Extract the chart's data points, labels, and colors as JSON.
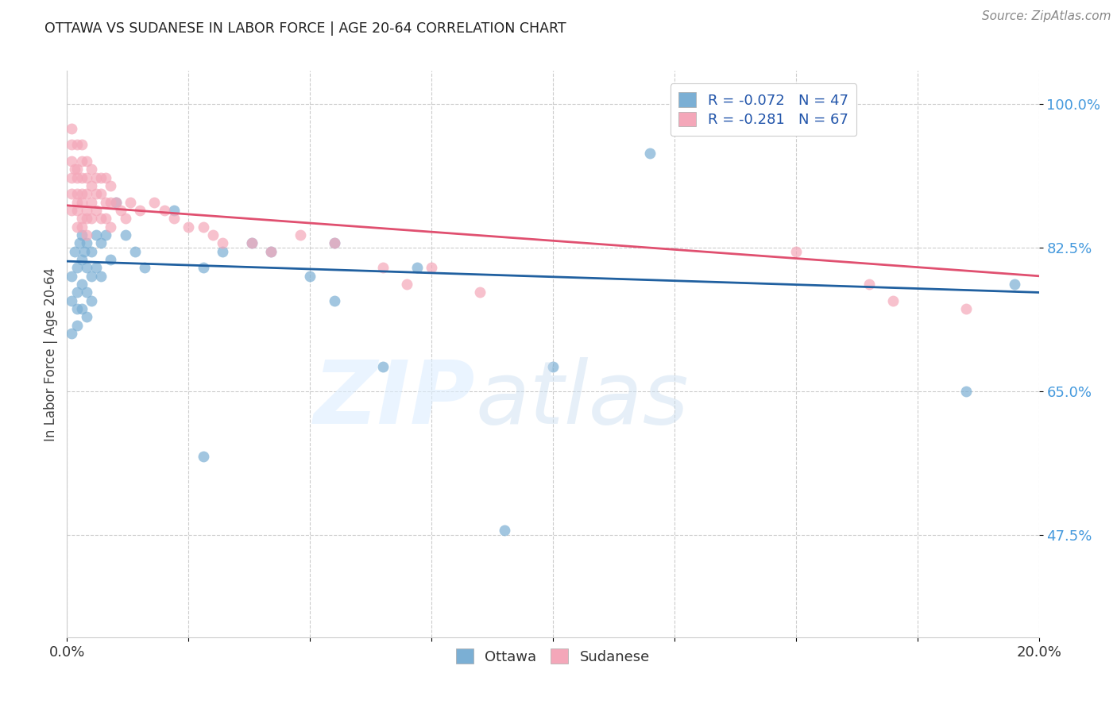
{
  "title": "OTTAWA VS SUDANESE IN LABOR FORCE | AGE 20-64 CORRELATION CHART",
  "source": "Source: ZipAtlas.com",
  "ylabel": "In Labor Force | Age 20-64",
  "xlim": [
    0.0,
    0.2
  ],
  "ylim": [
    0.35,
    1.04
  ],
  "yticks": [
    0.475,
    0.65,
    0.825,
    1.0
  ],
  "ytick_labels": [
    "47.5%",
    "65.0%",
    "82.5%",
    "100.0%"
  ],
  "xticks": [
    0.0,
    0.025,
    0.05,
    0.075,
    0.1,
    0.125,
    0.15,
    0.175,
    0.2
  ],
  "xtick_labels": [
    "0.0%",
    "",
    "",
    "",
    "",
    "",
    "",
    "",
    "20.0%"
  ],
  "ottawa_color": "#7bafd4",
  "sudanese_color": "#f4a7b9",
  "ottawa_line_color": "#2060a0",
  "sudanese_line_color": "#e05070",
  "ottawa_R": -0.072,
  "ottawa_N": 47,
  "sudanese_R": -0.281,
  "sudanese_N": 67,
  "ottawa_line_x": [
    0.0,
    0.2
  ],
  "ottawa_line_y": [
    0.808,
    0.77
  ],
  "sudanese_line_x": [
    0.0,
    0.2
  ],
  "sudanese_line_y": [
    0.876,
    0.79
  ],
  "ottawa_x": [
    0.001,
    0.001,
    0.001,
    0.0015,
    0.002,
    0.002,
    0.002,
    0.002,
    0.0025,
    0.003,
    0.003,
    0.003,
    0.003,
    0.0035,
    0.004,
    0.004,
    0.004,
    0.004,
    0.005,
    0.005,
    0.005,
    0.006,
    0.006,
    0.007,
    0.007,
    0.008,
    0.009,
    0.01,
    0.012,
    0.014,
    0.016,
    0.022,
    0.028,
    0.032,
    0.038,
    0.042,
    0.055,
    0.065,
    0.072,
    0.09,
    0.1,
    0.12,
    0.185,
    0.195,
    0.055,
    0.028,
    0.05
  ],
  "ottawa_y": [
    0.79,
    0.76,
    0.72,
    0.82,
    0.8,
    0.77,
    0.75,
    0.73,
    0.83,
    0.84,
    0.81,
    0.78,
    0.75,
    0.82,
    0.83,
    0.8,
    0.77,
    0.74,
    0.82,
    0.79,
    0.76,
    0.84,
    0.8,
    0.83,
    0.79,
    0.84,
    0.81,
    0.88,
    0.84,
    0.82,
    0.8,
    0.87,
    0.8,
    0.82,
    0.83,
    0.82,
    0.83,
    0.68,
    0.8,
    0.48,
    0.68,
    0.94,
    0.65,
    0.78,
    0.76,
    0.57,
    0.79
  ],
  "sudanese_x": [
    0.001,
    0.001,
    0.001,
    0.001,
    0.001,
    0.001,
    0.0015,
    0.002,
    0.002,
    0.002,
    0.002,
    0.002,
    0.002,
    0.002,
    0.003,
    0.003,
    0.003,
    0.003,
    0.003,
    0.003,
    0.003,
    0.004,
    0.004,
    0.004,
    0.004,
    0.004,
    0.004,
    0.005,
    0.005,
    0.005,
    0.005,
    0.006,
    0.006,
    0.006,
    0.007,
    0.007,
    0.007,
    0.008,
    0.008,
    0.008,
    0.009,
    0.009,
    0.009,
    0.01,
    0.011,
    0.012,
    0.013,
    0.015,
    0.018,
    0.02,
    0.022,
    0.025,
    0.028,
    0.03,
    0.032,
    0.038,
    0.042,
    0.048,
    0.055,
    0.065,
    0.07,
    0.075,
    0.085,
    0.15,
    0.165,
    0.17,
    0.185
  ],
  "sudanese_y": [
    0.97,
    0.95,
    0.93,
    0.91,
    0.89,
    0.87,
    0.92,
    0.95,
    0.92,
    0.91,
    0.89,
    0.88,
    0.87,
    0.85,
    0.95,
    0.93,
    0.91,
    0.89,
    0.88,
    0.86,
    0.85,
    0.93,
    0.91,
    0.89,
    0.87,
    0.86,
    0.84,
    0.92,
    0.9,
    0.88,
    0.86,
    0.91,
    0.89,
    0.87,
    0.91,
    0.89,
    0.86,
    0.91,
    0.88,
    0.86,
    0.9,
    0.88,
    0.85,
    0.88,
    0.87,
    0.86,
    0.88,
    0.87,
    0.88,
    0.87,
    0.86,
    0.85,
    0.85,
    0.84,
    0.83,
    0.83,
    0.82,
    0.84,
    0.83,
    0.8,
    0.78,
    0.8,
    0.77,
    0.82,
    0.78,
    0.76,
    0.75
  ]
}
